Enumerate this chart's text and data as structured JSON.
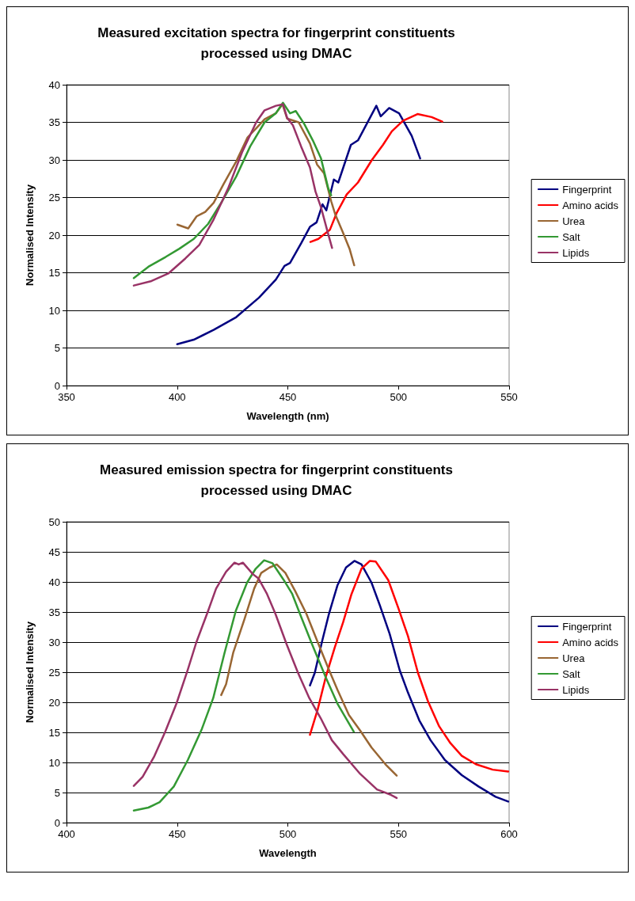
{
  "chart_data": [
    {
      "type": "line",
      "title": "Measured excitation spectra for fingerprint constituents\nprocessed using DMAC",
      "xlabel": "Wavelength (nm)",
      "ylabel": "Normalised Intensity",
      "xlim": [
        350,
        550
      ],
      "xticks": [
        350,
        400,
        450,
        500,
        550
      ],
      "ylim": [
        0,
        40
      ],
      "yticks": [
        0,
        5,
        10,
        15,
        20,
        25,
        30,
        35,
        40
      ],
      "grid": "y",
      "legend": "right",
      "marker": "none",
      "line_style": "solid",
      "series": [
        {
          "name": "Fingerprint",
          "color": "#000080",
          "x": [
            400,
            407.5,
            416.5,
            426.7,
            437,
            444.6,
            448.5,
            451,
            456,
            460,
            463,
            465.7,
            467.4,
            470.8,
            472.8,
            478.5,
            481.7,
            490,
            492,
            495.8,
            500.3,
            506,
            509.8
          ],
          "values": [
            5.5,
            6.1,
            7.4,
            9.1,
            11.7,
            14.1,
            15.9,
            16.3,
            18.9,
            21.1,
            21.7,
            24.1,
            23.3,
            27.4,
            27,
            32,
            32.6,
            37.2,
            35.8,
            36.9,
            36.2,
            33.2,
            30.2
          ]
        },
        {
          "name": "Amino acids",
          "color": "#ff0000",
          "x": [
            460.2,
            463.8,
            469,
            472,
            476.6,
            481.7,
            488,
            493,
            497,
            502,
            508.6,
            515,
            519.8
          ],
          "values": [
            19.1,
            19.5,
            20.7,
            22.9,
            25.4,
            27,
            30,
            32,
            33.8,
            35.2,
            36.1,
            35.7,
            35.1
          ]
        },
        {
          "name": "Urea",
          "color": "#996633",
          "x": [
            400.1,
            405,
            408.8,
            412.7,
            416.5,
            421,
            426.7,
            431.8,
            435.7,
            439.5,
            444.6,
            447.6,
            449.7,
            454.9,
            460,
            463.2,
            466.4,
            469.6,
            471.5,
            474.7,
            478,
            480
          ],
          "values": [
            21.4,
            20.9,
            22.5,
            23.1,
            24.3,
            26.8,
            29.8,
            33,
            34.2,
            35.4,
            36.2,
            37.4,
            35.5,
            35,
            32.2,
            29.4,
            28.2,
            24.5,
            22.7,
            20.5,
            18.1,
            16
          ]
        },
        {
          "name": "Salt",
          "color": "#339933",
          "x": [
            380.4,
            387,
            394.8,
            401,
            407.5,
            414,
            420.3,
            426.7,
            433,
            439.5,
            444.6,
            447.8,
            451,
            453.6,
            457.4,
            461.3,
            465,
            468.3,
            469.6
          ],
          "values": [
            14.3,
            15.8,
            17.1,
            18.2,
            19.5,
            21.5,
            24.5,
            27.8,
            31.8,
            35,
            36.2,
            37.6,
            36.2,
            36.5,
            34.8,
            32.6,
            30.2,
            26.2,
            25.3
          ]
        },
        {
          "name": "Lipids",
          "color": "#993366",
          "x": [
            380.4,
            388.4,
            396,
            403.7,
            410,
            416.5,
            423,
            429.3,
            435.7,
            439.5,
            444.6,
            447.8,
            449.7,
            452.3,
            456,
            460,
            462.5,
            465,
            468.3,
            470
          ],
          "values": [
            13.3,
            13.9,
            14.9,
            16.9,
            18.7,
            22.1,
            26.2,
            31,
            35,
            36.6,
            37.2,
            37.4,
            35.6,
            34.6,
            31.8,
            29,
            25.8,
            23.7,
            20.1,
            18.3
          ]
        }
      ]
    },
    {
      "type": "line",
      "title": "Measured emission spectra for fingerprint constituents\nprocessed using DMAC",
      "xlabel": "Wavelength",
      "ylabel": "Normalised Intensity",
      "xlim": [
        400,
        600
      ],
      "xticks": [
        400,
        450,
        500,
        550,
        600
      ],
      "ylim": [
        0,
        50
      ],
      "yticks": [
        0,
        5,
        10,
        15,
        20,
        25,
        30,
        35,
        40,
        45,
        50
      ],
      "grid": "y",
      "legend": "right",
      "marker": "none",
      "line_style": "solid",
      "series": [
        {
          "name": "Fingerprint",
          "color": "#000080",
          "x": [
            510,
            512.2,
            515.4,
            518.6,
            522.4,
            526.3,
            530.1,
            533.3,
            537.8,
            541.6,
            546,
            550.5,
            554.3,
            559.4,
            564.5,
            571,
            578.6,
            586.2,
            593.9,
            599.6
          ],
          "values": [
            22.8,
            24.9,
            30,
            34.7,
            39.4,
            42.4,
            43.5,
            42.9,
            39.9,
            36.1,
            31.4,
            25.4,
            21.6,
            17,
            13.7,
            10.4,
            7.9,
            6,
            4.3,
            3.5
          ]
        },
        {
          "name": "Amino acids",
          "color": "#ff0000",
          "x": [
            510,
            513.5,
            517.3,
            521.2,
            525,
            528.8,
            533.3,
            537.1,
            539.7,
            545.4,
            549.9,
            554.3,
            558.8,
            563.3,
            568.4,
            573.5,
            578.6,
            585,
            592.6,
            599.6
          ],
          "values": [
            14.6,
            18.8,
            24.4,
            29.1,
            33.3,
            38,
            42.2,
            43.5,
            43.4,
            40.3,
            35.7,
            31,
            24.9,
            20.2,
            16,
            13.2,
            11.1,
            9.7,
            8.8,
            8.5
          ]
        },
        {
          "name": "Urea",
          "color": "#996633",
          "x": [
            469.9,
            472.1,
            475.3,
            480.4,
            484.8,
            488,
            491.8,
            495,
            498.9,
            503.3,
            508.4,
            513.5,
            518.6,
            522.4,
            527.6,
            532.7,
            537.8,
            544.1,
            549.2
          ],
          "values": [
            21.2,
            23,
            28.2,
            33.8,
            38.9,
            41.5,
            42.4,
            42.9,
            41.5,
            38.5,
            34.7,
            30,
            25.4,
            22.1,
            17.9,
            15.3,
            12.5,
            9.7,
            7.8
          ]
        },
        {
          "name": "Salt",
          "color": "#339933",
          "x": [
            430.4,
            437,
            442.1,
            448.5,
            454.8,
            461.2,
            466.3,
            471.4,
            476.5,
            481.6,
            485.5,
            489.3,
            493.1,
            498.2,
            502,
            505.9,
            511,
            517.3,
            522.4,
            529.8
          ],
          "values": [
            2,
            2.5,
            3.4,
            6,
            10.4,
            15.6,
            20.7,
            28.2,
            35.2,
            39.9,
            42.2,
            43.6,
            43.1,
            40.3,
            38,
            34.3,
            29.6,
            24,
            19.8,
            15.1
          ]
        },
        {
          "name": "Lipids",
          "color": "#993366",
          "x": [
            430.4,
            434.4,
            439.5,
            444.6,
            449.7,
            454.8,
            458.7,
            463.8,
            467.6,
            472.1,
            475.9,
            477.8,
            479.7,
            484.2,
            486.7,
            490.6,
            494.4,
            499.5,
            504.6,
            509.7,
            514.8,
            519.9,
            525,
            532.7,
            540.3,
            546.7,
            549.2
          ],
          "values": [
            6.1,
            7.6,
            10.9,
            15.1,
            19.8,
            25.4,
            30,
            35,
            38.9,
            41.7,
            43.2,
            42.9,
            43.2,
            41.3,
            40.6,
            38,
            34.7,
            29.6,
            24.9,
            20.7,
            17.4,
            13.7,
            11.4,
            8.1,
            5.5,
            4.6,
            4.1
          ]
        }
      ]
    }
  ]
}
